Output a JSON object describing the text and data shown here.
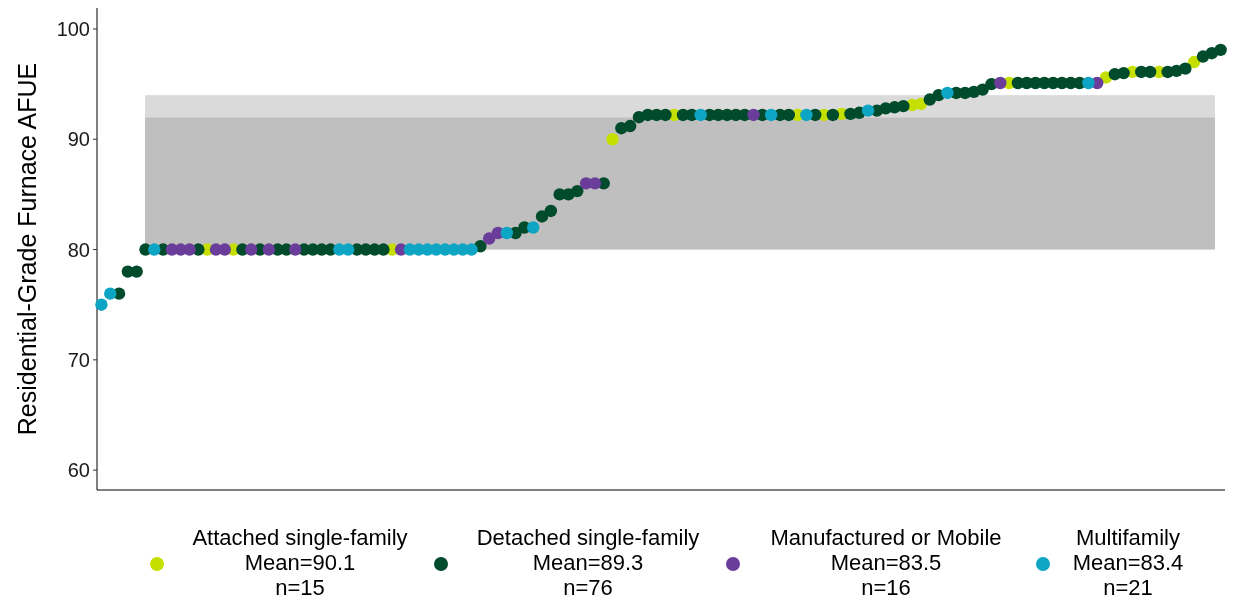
{
  "chart_data": {
    "type": "scatter",
    "ylabel": "Residential-Grade Furnace AFUE",
    "ylim": [
      58.2,
      101.9
    ],
    "yticks": [
      60,
      70,
      80,
      90,
      100
    ],
    "grid": false,
    "legend": "bottom",
    "marker": "circle",
    "tick_labels": "y",
    "categories": [
      null,
      null,
      null,
      null,
      null,
      null,
      null,
      null,
      null,
      null,
      null,
      null,
      null,
      null,
      null,
      null,
      null,
      null,
      null,
      null,
      null,
      null,
      null,
      null,
      null,
      null,
      null,
      null,
      null,
      null,
      null,
      null,
      null,
      null,
      null,
      null,
      null,
      null,
      null,
      null,
      null,
      null,
      null,
      null,
      null,
      null,
      null,
      null,
      null,
      null,
      null,
      null,
      null,
      null,
      null,
      null,
      null,
      null,
      null,
      null,
      null,
      null,
      null,
      null,
      null,
      null,
      null,
      null,
      null,
      null,
      null,
      null,
      null,
      null,
      null,
      null,
      null,
      null,
      null,
      null,
      null,
      null,
      null,
      null,
      null,
      null,
      null,
      null,
      null,
      null,
      null,
      null,
      null,
      null,
      null,
      null,
      null,
      null,
      null,
      null,
      null,
      null,
      null,
      null,
      null,
      null,
      null,
      null,
      null,
      null,
      null,
      null,
      null,
      null,
      null,
      null,
      null,
      null,
      null,
      null,
      null,
      null,
      null,
      null,
      null,
      null,
      null,
      null
    ],
    "bands": [
      {
        "axis": "y",
        "from": 80,
        "to": 92,
        "color": "#bfbfbf"
      },
      {
        "axis": "y",
        "from": 92,
        "to": 94,
        "color": "#dadada"
      }
    ],
    "series": [
      {
        "name": "Attached single-family\nMean=90.1\nn=15",
        "color": "#c5e000",
        "values": [
          null,
          null,
          null,
          null,
          null,
          null,
          null,
          null,
          null,
          null,
          null,
          null,
          80,
          null,
          null,
          80,
          null,
          null,
          null,
          null,
          null,
          null,
          null,
          null,
          null,
          null,
          null,
          null,
          null,
          null,
          null,
          null,
          null,
          80,
          null,
          null,
          null,
          null,
          null,
          null,
          null,
          null,
          null,
          null,
          null,
          null,
          null,
          null,
          null,
          null,
          null,
          null,
          null,
          null,
          null,
          null,
          null,
          null,
          90,
          null,
          null,
          null,
          null,
          null,
          null,
          92.2,
          null,
          null,
          null,
          null,
          null,
          null,
          null,
          null,
          null,
          null,
          null,
          null,
          null,
          92.2,
          null,
          null,
          92.2,
          null,
          92.3,
          null,
          null,
          null,
          null,
          null,
          null,
          null,
          93.1,
          93.2,
          null,
          null,
          null,
          null,
          null,
          null,
          null,
          null,
          null,
          95.1,
          null,
          null,
          null,
          null,
          null,
          null,
          null,
          null,
          null,
          null,
          95.6,
          null,
          null,
          96.1,
          null,
          null,
          96.1,
          null,
          null,
          null,
          97,
          null,
          null,
          null
        ]
      },
      {
        "name": "Detached single-family\nMean=89.3\nn=76",
        "color": "#004b2b",
        "values": [
          null,
          null,
          76,
          78,
          78,
          80,
          null,
          80,
          null,
          null,
          null,
          80,
          null,
          null,
          null,
          null,
          80,
          null,
          80,
          null,
          80,
          80,
          null,
          80,
          80,
          80,
          80,
          null,
          null,
          80,
          80,
          80,
          80,
          null,
          null,
          null,
          null,
          null,
          null,
          null,
          null,
          null,
          null,
          80.3,
          null,
          null,
          null,
          81.5,
          82,
          null,
          83,
          83.5,
          85,
          85,
          85.3,
          null,
          null,
          86,
          null,
          91,
          91.2,
          92,
          92.2,
          92.2,
          92.2,
          null,
          92.2,
          92.2,
          null,
          92.2,
          92.2,
          92.2,
          92.2,
          92.2,
          null,
          92.2,
          null,
          92.2,
          92.2,
          null,
          null,
          92.2,
          null,
          92.2,
          null,
          92.3,
          92.4,
          null,
          92.6,
          92.8,
          92.9,
          93,
          null,
          null,
          93.6,
          94,
          null,
          94.2,
          94.2,
          94.3,
          94.5,
          95,
          null,
          null,
          95.1,
          95.1,
          95.1,
          95.1,
          95.1,
          95.1,
          95.1,
          95.1,
          null,
          null,
          null,
          95.9,
          96,
          null,
          96.1,
          96.1,
          null,
          96.1,
          96.2,
          96.4,
          null,
          97.5,
          97.8,
          98.1
        ]
      },
      {
        "name": "Manufactured or Mobile\nMean=83.5\nn=16",
        "color": "#6a3d9a",
        "values": [
          null,
          null,
          null,
          null,
          null,
          null,
          null,
          null,
          80,
          80,
          80,
          null,
          null,
          80,
          80,
          null,
          null,
          80,
          null,
          80,
          null,
          null,
          80,
          null,
          null,
          null,
          null,
          null,
          null,
          null,
          null,
          null,
          null,
          null,
          80,
          null,
          null,
          null,
          null,
          null,
          null,
          null,
          null,
          null,
          81,
          81.5,
          null,
          null,
          null,
          null,
          null,
          null,
          null,
          null,
          null,
          86,
          86,
          null,
          null,
          null,
          null,
          null,
          null,
          null,
          null,
          null,
          null,
          null,
          null,
          null,
          null,
          null,
          null,
          null,
          92.2,
          null,
          null,
          null,
          null,
          null,
          null,
          null,
          null,
          null,
          null,
          null,
          null,
          null,
          null,
          null,
          null,
          null,
          null,
          null,
          null,
          null,
          null,
          null,
          null,
          null,
          null,
          null,
          95.1,
          null,
          null,
          null,
          null,
          null,
          null,
          null,
          null,
          null,
          null,
          95.1,
          null,
          null,
          null,
          null,
          null,
          null,
          null,
          null,
          null,
          null,
          null,
          null,
          null,
          null
        ]
      },
      {
        "name": "Multifamily\nMean=83.4\nn=21",
        "color": "#0ea5c4",
        "values": [
          75,
          76,
          null,
          null,
          null,
          null,
          80,
          null,
          null,
          null,
          null,
          null,
          null,
          null,
          null,
          null,
          null,
          null,
          null,
          null,
          null,
          null,
          null,
          null,
          null,
          null,
          null,
          80,
          80,
          null,
          null,
          null,
          null,
          null,
          null,
          80,
          80,
          80,
          80,
          80,
          80,
          80,
          80,
          null,
          null,
          null,
          81.5,
          null,
          null,
          82,
          null,
          null,
          null,
          null,
          null,
          null,
          null,
          null,
          null,
          null,
          null,
          null,
          null,
          null,
          null,
          null,
          null,
          null,
          92.2,
          null,
          null,
          null,
          null,
          null,
          null,
          null,
          92.2,
          null,
          null,
          null,
          92.2,
          null,
          null,
          null,
          null,
          null,
          null,
          92.6,
          null,
          null,
          null,
          null,
          null,
          null,
          null,
          null,
          94.2,
          null,
          null,
          null,
          null,
          null,
          null,
          null,
          null,
          null,
          null,
          null,
          null,
          null,
          null,
          null,
          95.1,
          null,
          null,
          null,
          null,
          null,
          null,
          null,
          null,
          null,
          null,
          null,
          null,
          null,
          null,
          null
        ]
      }
    ]
  }
}
